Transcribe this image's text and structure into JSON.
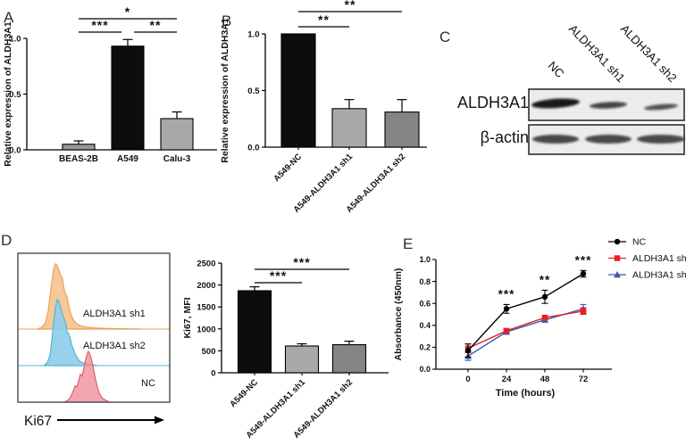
{
  "panels": {
    "a": {
      "label": "A"
    },
    "b": {
      "label": "B"
    },
    "c": {
      "label": "C"
    },
    "d": {
      "label": "D"
    },
    "e": {
      "label": "E"
    }
  },
  "western_blot": {
    "lane_labels": [
      "NC",
      "ALDH3A1 sh1",
      "ALDH3A1 sh2"
    ],
    "rows": [
      {
        "label": "ALDH3A1",
        "band_intensities": [
          1.0,
          0.62,
          0.52
        ]
      },
      {
        "label": "β-actin",
        "band_intensities": [
          0.85,
          0.85,
          0.85
        ]
      }
    ]
  },
  "flow_plot": {
    "xlabel": "Ki67",
    "series": [
      {
        "name": "ALDH3A1 sh1",
        "fill": "#f7c998",
        "stroke": "#e8a156"
      },
      {
        "name": "ALDH3A1 sh2",
        "fill": "#8fcde9",
        "stroke": "#55b5d8"
      },
      {
        "name": "NC",
        "fill": "#f2939d",
        "stroke": "#dc606d"
      }
    ]
  },
  "chart_data": [
    {
      "id": "A",
      "type": "bar",
      "ylabel": "Relative expression of ALDH3A1",
      "categories": [
        "BEAS-2B",
        "A549",
        "Calu-3"
      ],
      "values": [
        0.05,
        0.93,
        0.28
      ],
      "errors": [
        0.03,
        0.06,
        0.06
      ],
      "bar_colors": [
        "#979797",
        "#0d0d0d",
        "#a8a8a8"
      ],
      "yticks": [
        "0.0",
        "0.5",
        "1.0"
      ],
      "ylim": [
        0,
        1
      ],
      "significance": [
        {
          "from": 0,
          "to": 1,
          "label": "***",
          "row": 0
        },
        {
          "from": 1,
          "to": 2,
          "label": "**",
          "row": 0
        },
        {
          "from": 0,
          "to": 2,
          "label": "*",
          "row": 1
        }
      ]
    },
    {
      "id": "B",
      "type": "bar",
      "ylabel": "Relative expression of ALDH3A1",
      "categories": [
        "A549-NC",
        "A549-ALDH3A1 sh1",
        "A549-ALDH3A1 sh2"
      ],
      "values": [
        1.0,
        0.34,
        0.31
      ],
      "errors": [
        0,
        0.08,
        0.11
      ],
      "bar_colors": [
        "#0d0d0d",
        "#a9a9a9",
        "#858585"
      ],
      "yticks": [
        "0.0",
        "0.5",
        "1.0"
      ],
      "ylim": [
        0,
        1
      ],
      "significance": [
        {
          "from": 0,
          "to": 1,
          "label": "**",
          "row": 0
        },
        {
          "from": 0,
          "to": 2,
          "label": "**",
          "row": 1
        }
      ]
    },
    {
      "id": "Dbar",
      "type": "bar",
      "ylabel": "Ki67, MFI",
      "categories": [
        "A549-NC",
        "A549-ALDH3A1 sh1",
        "A549-ALDH3A1 sh2"
      ],
      "values": [
        1870,
        610,
        640
      ],
      "errors": [
        90,
        50,
        80
      ],
      "bar_colors": [
        "#0d0d0d",
        "#a9a9a9",
        "#858585"
      ],
      "yticks": [
        "0",
        "500",
        "1000",
        "1500",
        "2000",
        "2500"
      ],
      "ylim": [
        0,
        2500
      ],
      "significance": [
        {
          "from": 0,
          "to": 1,
          "label": "***",
          "row": 0
        },
        {
          "from": 0,
          "to": 2,
          "label": "***",
          "row": 1
        }
      ]
    },
    {
      "id": "E",
      "type": "line",
      "xlabel": "Time (hours)",
      "ylabel": "Absorbance (450nm)",
      "x": [
        0,
        24,
        48,
        72
      ],
      "xticks": [
        "0",
        "24",
        "48",
        "72"
      ],
      "yticks": [
        "0.0",
        "0.2",
        "0.4",
        "0.6",
        "0.8",
        "1.0"
      ],
      "ylim": [
        0,
        1
      ],
      "series": [
        {
          "name": "NC",
          "color": "#000000",
          "marker": "circle",
          "values": [
            0.17,
            0.55,
            0.66,
            0.87
          ],
          "errors": [
            0.06,
            0.04,
            0.06,
            0.03
          ]
        },
        {
          "name": "ALDH3A1 sh1",
          "color": "#e32128",
          "marker": "square",
          "values": [
            0.19,
            0.35,
            0.47,
            0.53
          ],
          "errors": [
            0.04,
            0.02,
            0.02,
            0.03
          ]
        },
        {
          "name": "ALDH3A1 sh2",
          "color": "#3a5ca9",
          "marker": "triangle",
          "values": [
            0.12,
            0.34,
            0.45,
            0.55
          ],
          "errors": [
            0.04,
            0.02,
            0.02,
            0.04
          ]
        }
      ],
      "annotations": [
        {
          "x": 24,
          "label": "***"
        },
        {
          "x": 48,
          "label": "**"
        },
        {
          "x": 72,
          "label": "***"
        }
      ],
      "legend_position": "top-right"
    }
  ]
}
